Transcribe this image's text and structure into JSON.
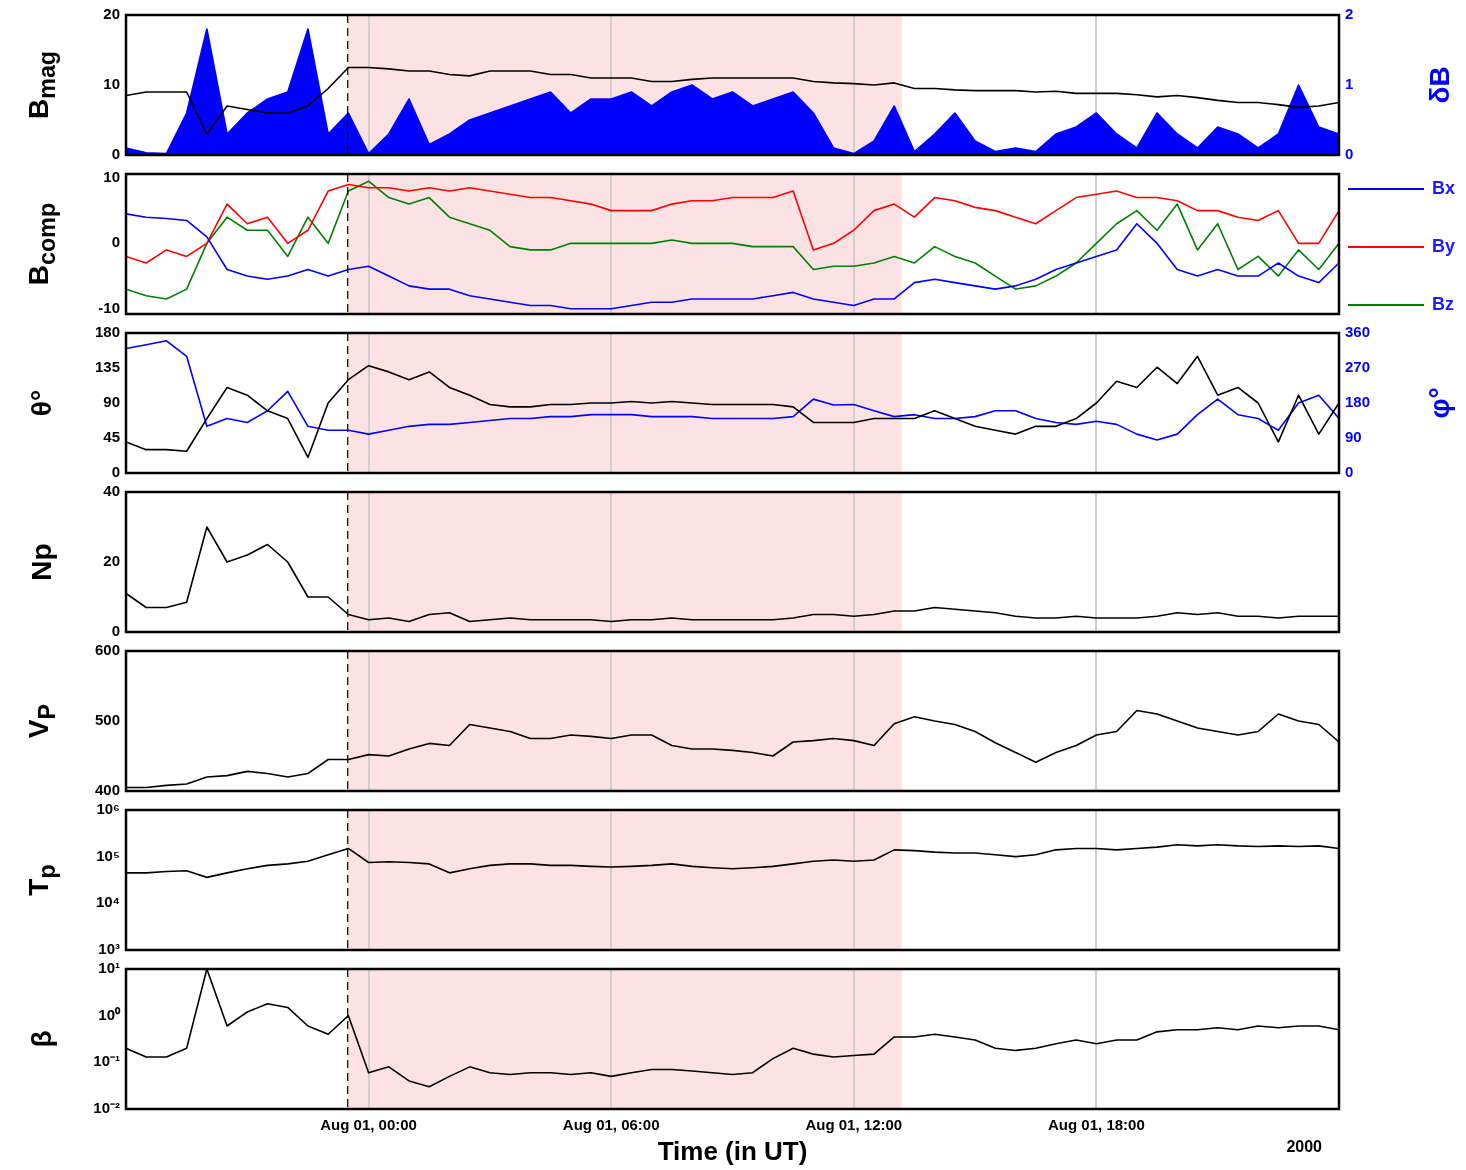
{
  "chart_data": [
    {
      "type": "line",
      "ylabel": "B$_{mag}$",
      "y2label": "δB",
      "x": [
        "2000-07-31T18:00",
        "2000-07-31T18:30",
        "2000-07-31T19:00",
        "2000-07-31T19:30",
        "2000-07-31T20:00",
        "2000-07-31T20:30",
        "2000-07-31T21:00",
        "2000-07-31T21:30",
        "2000-07-31T22:00",
        "2000-07-31T22:30",
        "2000-07-31T23:00",
        "2000-07-31T23:30",
        "2000-08-01T00:00",
        "2000-08-01T00:30",
        "2000-08-01T01:00",
        "2000-08-01T01:30",
        "2000-08-01T02:00",
        "2000-08-01T02:30",
        "2000-08-01T03:00",
        "2000-08-01T03:30",
        "2000-08-01T04:00",
        "2000-08-01T04:30",
        "2000-08-01T05:00",
        "2000-08-01T05:30",
        "2000-08-01T06:00",
        "2000-08-01T06:30",
        "2000-08-01T07:00",
        "2000-08-01T07:30",
        "2000-08-01T08:00",
        "2000-08-01T08:30",
        "2000-08-01T09:00",
        "2000-08-01T09:30",
        "2000-08-01T10:00",
        "2000-08-01T10:30",
        "2000-08-01T11:00",
        "2000-08-01T11:30",
        "2000-08-01T12:00",
        "2000-08-01T12:30",
        "2000-08-01T13:00",
        "2000-08-01T13:30",
        "2000-08-01T14:00",
        "2000-08-01T14:30",
        "2000-08-01T15:00",
        "2000-08-01T15:30",
        "2000-08-01T16:00",
        "2000-08-01T16:30",
        "2000-08-01T17:00",
        "2000-08-01T17:30",
        "2000-08-01T18:00",
        "2000-08-01T18:30",
        "2000-08-01T19:00",
        "2000-08-01T19:30",
        "2000-08-01T20:00",
        "2000-08-01T20:30",
        "2000-08-01T21:00",
        "2000-08-01T21:30",
        "2000-08-01T22:00",
        "2000-08-01T22:30",
        "2000-08-01T23:00",
        "2000-08-01T23:30",
        "2000-08-02T00:00"
      ],
      "series": [
        {
          "color": "#000000",
          "values": [
            8.5,
            9,
            9,
            9,
            3,
            7,
            6.5,
            6,
            6,
            7,
            9.5,
            12.5,
            12.5,
            12.3,
            12,
            12,
            11.5,
            11.3,
            12,
            12,
            12,
            11.5,
            11.5,
            11,
            11,
            11,
            10.5,
            10.5,
            10.8,
            11,
            11,
            11,
            11,
            11,
            10.5,
            10.3,
            10.2,
            10,
            10.3,
            9.5,
            9.5,
            9.3,
            9.2,
            9.2,
            9.2,
            9,
            9.1,
            8.8,
            8.8,
            8.8,
            8.6,
            8.3,
            8.5,
            8.2,
            7.8,
            7.5,
            7.5,
            7.2,
            6.8,
            7,
            7.5
          ]
        },
        {
          "type": "area",
          "axis": "y2",
          "color": "#0000ff",
          "values": [
            0.1,
            0.03,
            0.02,
            0.6,
            1.8,
            0.3,
            0.6,
            0.8,
            0.9,
            1.8,
            0.3,
            0.6,
            0.02,
            0.3,
            0.8,
            0.15,
            0.3,
            0.5,
            0.6,
            0.7,
            0.8,
            0.9,
            0.6,
            0.8,
            0.8,
            0.9,
            0.7,
            0.9,
            1.0,
            0.8,
            0.9,
            0.7,
            0.8,
            0.9,
            0.6,
            0.1,
            0.02,
            0.2,
            0.7,
            0.05,
            0.3,
            0.6,
            0.2,
            0.05,
            0.1,
            0.05,
            0.3,
            0.4,
            0.6,
            0.3,
            0.1,
            0.6,
            0.3,
            0.1,
            0.4,
            0.3,
            0.1,
            0.3,
            1.0,
            0.4,
            0.3
          ]
        }
      ],
      "xlim": [
        "2000-07-31T18:00",
        "2000-08-02T00:00"
      ],
      "xticks": [
        {
          "value": "2000-08-01T00:00",
          "label": null
        },
        {
          "value": "2000-08-01T06:00",
          "label": null
        },
        {
          "value": "2000-08-01T12:00",
          "label": null
        },
        {
          "value": "2000-08-01T18:00",
          "label": null
        }
      ],
      "ylim": [
        0,
        20
      ],
      "yticks": [
        0,
        10,
        20
      ],
      "y2lim": [
        0,
        2
      ],
      "y2ticks": [
        0,
        1,
        2
      ],
      "grid": "x",
      "tick_labels": "y",
      "bands": [
        {
          "axis": "x",
          "from": "2000-07-31T23:29",
          "to": "2000-08-01T13:11",
          "color": "#fde2e4"
        }
      ],
      "ref_lines": [
        {
          "axis": "x",
          "value": "2000-07-31T23:29",
          "color": "#000000",
          "line_style": "dashed"
        }
      ]
    },
    {
      "type": "line",
      "ylabel": "B$_{comp}$",
      "legend": "right",
      "x": [
        "2000-07-31T18:00",
        "2000-07-31T18:30",
        "2000-07-31T19:00",
        "2000-07-31T19:30",
        "2000-07-31T20:00",
        "2000-07-31T20:30",
        "2000-07-31T21:00",
        "2000-07-31T21:30",
        "2000-07-31T22:00",
        "2000-07-31T22:30",
        "2000-07-31T23:00",
        "2000-07-31T23:30",
        "2000-08-01T00:00",
        "2000-08-01T00:30",
        "2000-08-01T01:00",
        "2000-08-01T01:30",
        "2000-08-01T02:00",
        "2000-08-01T02:30",
        "2000-08-01T03:00",
        "2000-08-01T03:30",
        "2000-08-01T04:00",
        "2000-08-01T04:30",
        "2000-08-01T05:00",
        "2000-08-01T05:30",
        "2000-08-01T06:00",
        "2000-08-01T06:30",
        "2000-08-01T07:00",
        "2000-08-01T07:30",
        "2000-08-01T08:00",
        "2000-08-01T08:30",
        "2000-08-01T09:00",
        "2000-08-01T09:30",
        "2000-08-01T10:00",
        "2000-08-01T10:30",
        "2000-08-01T11:00",
        "2000-08-01T11:30",
        "2000-08-01T12:00",
        "2000-08-01T12:30",
        "2000-08-01T13:00",
        "2000-08-01T13:30",
        "2000-08-01T14:00",
        "2000-08-01T14:30",
        "2000-08-01T15:00",
        "2000-08-01T15:30",
        "2000-08-01T16:00",
        "2000-08-01T16:30",
        "2000-08-01T17:00",
        "2000-08-01T17:30",
        "2000-08-01T18:00",
        "2000-08-01T18:30",
        "2000-08-01T19:00",
        "2000-08-01T19:30",
        "2000-08-01T20:00",
        "2000-08-01T20:30",
        "2000-08-01T21:00",
        "2000-08-01T21:30",
        "2000-08-01T22:00",
        "2000-08-01T22:30",
        "2000-08-01T23:00",
        "2000-08-01T23:30",
        "2000-08-02T00:00"
      ],
      "series": [
        {
          "name": "Bx",
          "color": "#0000ff",
          "values": [
            4.5,
            4,
            3.8,
            3.5,
            1,
            -4,
            -5,
            -5.5,
            -5,
            -4,
            -5,
            -4,
            -3.5,
            -5,
            -6.5,
            -7,
            -7,
            -8,
            -8.5,
            -9,
            -9.5,
            -9.5,
            -10,
            -10,
            -10,
            -9.5,
            -9,
            -9,
            -8.5,
            -8.5,
            -8.5,
            -8.5,
            -8,
            -7.5,
            -8.5,
            -9,
            -9.5,
            -8.5,
            -8.5,
            -6,
            -5.5,
            -6,
            -6.5,
            -7,
            -6.5,
            -5.5,
            -4,
            -3,
            -2,
            -1,
            3,
            0,
            -4,
            -5,
            -4,
            -5,
            -5,
            -3,
            -5,
            -6,
            -3
          ]
        },
        {
          "name": "By",
          "color": "#ff0000",
          "values": [
            -2,
            -3,
            -1,
            -2,
            0,
            6,
            3,
            4,
            0,
            2,
            8,
            9,
            8.5,
            8.5,
            8,
            8.5,
            8,
            8.5,
            8,
            7.5,
            7,
            7,
            6.5,
            6,
            5,
            5,
            5,
            6,
            6.5,
            6.5,
            7,
            7,
            7,
            8,
            -1,
            0,
            2,
            5,
            6,
            4,
            7,
            6.5,
            5.5,
            5,
            4,
            3,
            5,
            7,
            7.5,
            8,
            7,
            7,
            6.5,
            5,
            5,
            4,
            3.5,
            5,
            0,
            0,
            5
          ]
        },
        {
          "name": "Bz",
          "color": "#008000",
          "values": [
            -7,
            -8,
            -8.5,
            -7,
            0,
            4,
            2,
            2,
            -2,
            4,
            0,
            8,
            9.5,
            7,
            6,
            7,
            4,
            3,
            2,
            -0.5,
            -1,
            -1,
            0,
            0,
            0,
            0,
            0,
            0.5,
            0,
            0,
            0,
            -0.5,
            -0.5,
            -0.5,
            -4,
            -3.5,
            -3.5,
            -3,
            -2,
            -3,
            -0.5,
            -2,
            -3,
            -5,
            -7,
            -6.5,
            -5,
            -3,
            0,
            3,
            5,
            2,
            6,
            -1,
            3,
            -4,
            -2,
            -5,
            -1,
            -4,
            0
          ]
        }
      ],
      "xlim": [
        "2000-07-31T18:00",
        "2000-08-02T00:00"
      ],
      "xticks": [
        {
          "value": "2000-08-01T00:00",
          "label": null
        },
        {
          "value": "2000-08-01T06:00",
          "label": null
        },
        {
          "value": "2000-08-01T12:00",
          "label": null
        },
        {
          "value": "2000-08-01T18:00",
          "label": null
        }
      ],
      "ylim": [
        -10.8,
        10.6
      ],
      "yticks": [
        -10,
        0,
        10
      ],
      "grid": "x",
      "tick_labels": "y",
      "bands": [
        {
          "axis": "x",
          "from": "2000-07-31T23:29",
          "to": "2000-08-01T13:11",
          "color": "#fde2e4"
        }
      ],
      "ref_lines": [
        {
          "axis": "x",
          "value": "2000-07-31T23:29",
          "color": "#000000",
          "line_style": "dashed"
        }
      ]
    },
    {
      "type": "line",
      "ylabel": "θ°",
      "y2label": "φ°",
      "x": [
        "2000-07-31T18:00",
        "2000-07-31T18:30",
        "2000-07-31T19:00",
        "2000-07-31T19:30",
        "2000-07-31T20:00",
        "2000-07-31T20:30",
        "2000-07-31T21:00",
        "2000-07-31T21:30",
        "2000-07-31T22:00",
        "2000-07-31T22:30",
        "2000-07-31T23:00",
        "2000-07-31T23:30",
        "2000-08-01T00:00",
        "2000-08-01T00:30",
        "2000-08-01T01:00",
        "2000-08-01T01:30",
        "2000-08-01T02:00",
        "2000-08-01T02:30",
        "2000-08-01T03:00",
        "2000-08-01T03:30",
        "2000-08-01T04:00",
        "2000-08-01T04:30",
        "2000-08-01T05:00",
        "2000-08-01T05:30",
        "2000-08-01T06:00",
        "2000-08-01T06:30",
        "2000-08-01T07:00",
        "2000-08-01T07:30",
        "2000-08-01T08:00",
        "2000-08-01T08:30",
        "2000-08-01T09:00",
        "2000-08-01T09:30",
        "2000-08-01T10:00",
        "2000-08-01T10:30",
        "2000-08-01T11:00",
        "2000-08-01T11:30",
        "2000-08-01T12:00",
        "2000-08-01T12:30",
        "2000-08-01T13:00",
        "2000-08-01T13:30",
        "2000-08-01T14:00",
        "2000-08-01T14:30",
        "2000-08-01T15:00",
        "2000-08-01T15:30",
        "2000-08-01T16:00",
        "2000-08-01T16:30",
        "2000-08-01T17:00",
        "2000-08-01T17:30",
        "2000-08-01T18:00",
        "2000-08-01T18:30",
        "2000-08-01T19:00",
        "2000-08-01T19:30",
        "2000-08-01T20:00",
        "2000-08-01T20:30",
        "2000-08-01T21:00",
        "2000-08-01T21:30",
        "2000-08-01T22:00",
        "2000-08-01T22:30",
        "2000-08-01T23:00",
        "2000-08-01T23:30",
        "2000-08-02T00:00"
      ],
      "series": [
        {
          "color": "#000000",
          "values": [
            40,
            30,
            30,
            28,
            70,
            110,
            100,
            80,
            70,
            20,
            90,
            120,
            138,
            130,
            120,
            130,
            110,
            100,
            88,
            85,
            85,
            88,
            88,
            90,
            90,
            92,
            90,
            92,
            90,
            88,
            88,
            88,
            88,
            85,
            65,
            65,
            65,
            70,
            70,
            70,
            80,
            70,
            60,
            55,
            50,
            60,
            60,
            70,
            90,
            118,
            110,
            136,
            115,
            150,
            100,
            110,
            90,
            40,
            100,
            50,
            90
          ]
        },
        {
          "axis": "y2",
          "color": "#0000ff",
          "values": [
            320,
            330,
            340,
            300,
            120,
            140,
            130,
            160,
            210,
            120,
            110,
            110,
            100,
            110,
            120,
            125,
            125,
            130,
            135,
            140,
            140,
            145,
            145,
            150,
            150,
            150,
            145,
            145,
            145,
            140,
            140,
            140,
            140,
            145,
            190,
            175,
            176,
            160,
            145,
            150,
            140,
            140,
            145,
            160,
            160,
            140,
            130,
            125,
            133,
            125,
            100,
            85,
            100,
            150,
            190,
            150,
            140,
            110,
            180,
            200,
            140
          ]
        }
      ],
      "xlim": [
        "2000-07-31T18:00",
        "2000-08-02T00:00"
      ],
      "xticks": [
        {
          "value": "2000-08-01T00:00",
          "label": null
        },
        {
          "value": "2000-08-01T06:00",
          "label": null
        },
        {
          "value": "2000-08-01T12:00",
          "label": null
        },
        {
          "value": "2000-08-01T18:00",
          "label": null
        }
      ],
      "ylim": [
        0,
        180
      ],
      "yticks": [
        0,
        45,
        90,
        135,
        180
      ],
      "y2lim": [
        0,
        360
      ],
      "y2ticks": [
        0,
        90,
        180,
        270,
        360
      ],
      "grid": "x",
      "tick_labels": "y",
      "bands": [
        {
          "axis": "x",
          "from": "2000-07-31T23:29",
          "to": "2000-08-01T13:11",
          "color": "#fde2e4"
        }
      ],
      "ref_lines": [
        {
          "axis": "x",
          "value": "2000-07-31T23:29",
          "color": "#000000",
          "line_style": "dashed"
        }
      ]
    },
    {
      "type": "line",
      "ylabel": "Np",
      "x": [
        "2000-07-31T18:00",
        "2000-07-31T18:30",
        "2000-07-31T19:00",
        "2000-07-31T19:30",
        "2000-07-31T20:00",
        "2000-07-31T20:30",
        "2000-07-31T21:00",
        "2000-07-31T21:30",
        "2000-07-31T22:00",
        "2000-07-31T22:30",
        "2000-07-31T23:00",
        "2000-07-31T23:30",
        "2000-08-01T00:00",
        "2000-08-01T00:30",
        "2000-08-01T01:00",
        "2000-08-01T01:30",
        "2000-08-01T02:00",
        "2000-08-01T02:30",
        "2000-08-01T03:00",
        "2000-08-01T03:30",
        "2000-08-01T04:00",
        "2000-08-01T04:30",
        "2000-08-01T05:00",
        "2000-08-01T05:30",
        "2000-08-01T06:00",
        "2000-08-01T06:30",
        "2000-08-01T07:00",
        "2000-08-01T07:30",
        "2000-08-01T08:00",
        "2000-08-01T08:30",
        "2000-08-01T09:00",
        "2000-08-01T09:30",
        "2000-08-01T10:00",
        "2000-08-01T10:30",
        "2000-08-01T11:00",
        "2000-08-01T11:30",
        "2000-08-01T12:00",
        "2000-08-01T12:30",
        "2000-08-01T13:00",
        "2000-08-01T13:30",
        "2000-08-01T14:00",
        "2000-08-01T14:30",
        "2000-08-01T15:00",
        "2000-08-01T15:30",
        "2000-08-01T16:00",
        "2000-08-01T16:30",
        "2000-08-01T17:00",
        "2000-08-01T17:30",
        "2000-08-01T18:00",
        "2000-08-01T18:30",
        "2000-08-01T19:00",
        "2000-08-01T19:30",
        "2000-08-01T20:00",
        "2000-08-01T20:30",
        "2000-08-01T21:00",
        "2000-08-01T21:30",
        "2000-08-01T22:00",
        "2000-08-01T22:30",
        "2000-08-01T23:00",
        "2000-08-01T23:30",
        "2000-08-02T00:00"
      ],
      "series": [
        {
          "color": "#000000",
          "values": [
            11,
            7,
            7,
            8.5,
            30,
            20,
            22,
            25,
            20,
            10,
            10,
            5,
            3.5,
            4,
            3,
            5,
            5.5,
            3,
            3.5,
            4,
            3.5,
            3.5,
            3.5,
            3.5,
            3,
            3.5,
            3.5,
            4,
            3.5,
            3.5,
            3.5,
            3.5,
            3.5,
            4,
            5,
            5,
            4.5,
            5,
            6,
            6,
            7,
            6.5,
            6,
            5.5,
            4.5,
            4,
            4,
            4.5,
            4,
            4,
            4,
            4.5,
            5.5,
            5,
            5.5,
            4.5,
            4.5,
            4,
            4.5,
            4.5,
            4.5
          ]
        }
      ],
      "xlim": [
        "2000-07-31T18:00",
        "2000-08-02T00:00"
      ],
      "xticks": [
        {
          "value": "2000-08-01T00:00",
          "label": null
        },
        {
          "value": "2000-08-01T06:00",
          "label": null
        },
        {
          "value": "2000-08-01T12:00",
          "label": null
        },
        {
          "value": "2000-08-01T18:00",
          "label": null
        }
      ],
      "ylim": [
        0,
        40
      ],
      "yticks": [
        0,
        20,
        40
      ],
      "grid": "x",
      "tick_labels": "y",
      "bands": [
        {
          "axis": "x",
          "from": "2000-07-31T23:29",
          "to": "2000-08-01T13:11",
          "color": "#fde2e4"
        }
      ],
      "ref_lines": [
        {
          "axis": "x",
          "value": "2000-07-31T23:29",
          "color": "#000000",
          "line_style": "dashed"
        }
      ]
    },
    {
      "type": "line",
      "ylabel": "V$_{P}$",
      "x": [
        "2000-07-31T18:00",
        "2000-07-31T18:30",
        "2000-07-31T19:00",
        "2000-07-31T19:30",
        "2000-07-31T20:00",
        "2000-07-31T20:30",
        "2000-07-31T21:00",
        "2000-07-31T21:30",
        "2000-07-31T22:00",
        "2000-07-31T22:30",
        "2000-07-31T23:00",
        "2000-07-31T23:30",
        "2000-08-01T00:00",
        "2000-08-01T00:30",
        "2000-08-01T01:00",
        "2000-08-01T01:30",
        "2000-08-01T02:00",
        "2000-08-01T02:30",
        "2000-08-01T03:00",
        "2000-08-01T03:30",
        "2000-08-01T04:00",
        "2000-08-01T04:30",
        "2000-08-01T05:00",
        "2000-08-01T05:30",
        "2000-08-01T06:00",
        "2000-08-01T06:30",
        "2000-08-01T07:00",
        "2000-08-01T07:30",
        "2000-08-01T08:00",
        "2000-08-01T08:30",
        "2000-08-01T09:00",
        "2000-08-01T09:30",
        "2000-08-01T10:00",
        "2000-08-01T10:30",
        "2000-08-01T11:00",
        "2000-08-01T11:30",
        "2000-08-01T12:00",
        "2000-08-01T12:30",
        "2000-08-01T13:00",
        "2000-08-01T13:30",
        "2000-08-01T14:00",
        "2000-08-01T14:30",
        "2000-08-01T15:00",
        "2000-08-01T15:30",
        "2000-08-01T16:00",
        "2000-08-01T16:30",
        "2000-08-01T17:00",
        "2000-08-01T17:30",
        "2000-08-01T18:00",
        "2000-08-01T18:30",
        "2000-08-01T19:00",
        "2000-08-01T19:30",
        "2000-08-01T20:00",
        "2000-08-01T20:30",
        "2000-08-01T21:00",
        "2000-08-01T21:30",
        "2000-08-01T22:00",
        "2000-08-01T22:30",
        "2000-08-01T23:00",
        "2000-08-01T23:30",
        "2000-08-02T00:00"
      ],
      "series": [
        {
          "color": "#000000",
          "values": [
            405,
            405,
            408,
            410,
            420,
            422,
            428,
            425,
            420,
            425,
            445,
            445,
            452,
            450,
            460,
            468,
            465,
            495,
            490,
            485,
            475,
            475,
            480,
            478,
            475,
            480,
            480,
            465,
            460,
            460,
            458,
            455,
            450,
            470,
            472,
            475,
            472,
            465,
            496,
            506,
            500,
            495,
            485,
            469,
            455,
            441,
            455,
            465,
            480,
            485,
            515,
            510,
            500,
            490,
            485,
            480,
            485,
            510,
            500,
            495,
            470
          ]
        }
      ],
      "xlim": [
        "2000-07-31T18:00",
        "2000-08-02T00:00"
      ],
      "xticks": [
        {
          "value": "2000-08-01T00:00",
          "label": null
        },
        {
          "value": "2000-08-01T06:00",
          "label": null
        },
        {
          "value": "2000-08-01T12:00",
          "label": null
        },
        {
          "value": "2000-08-01T18:00",
          "label": null
        }
      ],
      "ylim": [
        400,
        600
      ],
      "yticks": [
        400,
        500,
        600
      ],
      "grid": "x",
      "tick_labels": "y",
      "bands": [
        {
          "axis": "x",
          "from": "2000-07-31T23:29",
          "to": "2000-08-01T13:11",
          "color": "#fde2e4"
        }
      ],
      "ref_lines": [
        {
          "axis": "x",
          "value": "2000-07-31T23:29",
          "color": "#000000",
          "line_style": "dashed"
        }
      ]
    },
    {
      "type": "line",
      "ylabel": "T$_{p}$",
      "log": "y",
      "x": [
        "2000-07-31T18:00",
        "2000-07-31T18:30",
        "2000-07-31T19:00",
        "2000-07-31T19:30",
        "2000-07-31T20:00",
        "2000-07-31T20:30",
        "2000-07-31T21:00",
        "2000-07-31T21:30",
        "2000-07-31T22:00",
        "2000-07-31T22:30",
        "2000-07-31T23:00",
        "2000-07-31T23:30",
        "2000-08-01T00:00",
        "2000-08-01T00:30",
        "2000-08-01T01:00",
        "2000-08-01T01:30",
        "2000-08-01T02:00",
        "2000-08-01T02:30",
        "2000-08-01T03:00",
        "2000-08-01T03:30",
        "2000-08-01T04:00",
        "2000-08-01T04:30",
        "2000-08-01T05:00",
        "2000-08-01T05:30",
        "2000-08-01T06:00",
        "2000-08-01T06:30",
        "2000-08-01T07:00",
        "2000-08-01T07:30",
        "2000-08-01T08:00",
        "2000-08-01T08:30",
        "2000-08-01T09:00",
        "2000-08-01T09:30",
        "2000-08-01T10:00",
        "2000-08-01T10:30",
        "2000-08-01T11:00",
        "2000-08-01T11:30",
        "2000-08-01T12:00",
        "2000-08-01T12:30",
        "2000-08-01T13:00",
        "2000-08-01T13:30",
        "2000-08-01T14:00",
        "2000-08-01T14:30",
        "2000-08-01T15:00",
        "2000-08-01T15:30",
        "2000-08-01T16:00",
        "2000-08-01T16:30",
        "2000-08-01T17:00",
        "2000-08-01T17:30",
        "2000-08-01T18:00",
        "2000-08-01T18:30",
        "2000-08-01T19:00",
        "2000-08-01T19:30",
        "2000-08-01T20:00",
        "2000-08-01T20:30",
        "2000-08-01T21:00",
        "2000-08-01T21:30",
        "2000-08-01T22:00",
        "2000-08-01T22:30",
        "2000-08-01T23:00",
        "2000-08-01T23:30",
        "2000-08-02T00:00"
      ],
      "series": [
        {
          "color": "#000000",
          "values": [
            45000,
            45000,
            48000,
            50000,
            36000,
            45000,
            55000,
            65000,
            70000,
            80000,
            110000,
            150000,
            75000,
            78000,
            75000,
            70000,
            45000,
            55000,
            65000,
            70000,
            70000,
            65000,
            65000,
            62000,
            60000,
            62000,
            65000,
            70000,
            62000,
            58000,
            55000,
            58000,
            62000,
            70000,
            80000,
            85000,
            80000,
            85000,
            140000,
            135000,
            125000,
            120000,
            120000,
            110000,
            100000,
            110000,
            140000,
            150000,
            150000,
            140000,
            150000,
            160000,
            180000,
            170000,
            180000,
            170000,
            165000,
            170000,
            165000,
            170000,
            150000
          ]
        }
      ],
      "xlim": [
        "2000-07-31T18:00",
        "2000-08-02T00:00"
      ],
      "xticks": [
        {
          "value": "2000-08-01T00:00",
          "label": null
        },
        {
          "value": "2000-08-01T06:00",
          "label": null
        },
        {
          "value": "2000-08-01T12:00",
          "label": null
        },
        {
          "value": "2000-08-01T18:00",
          "label": null
        }
      ],
      "ylim": [
        1000,
        1000000
      ],
      "yticks": [
        {
          "value": 1000,
          "label": "10³"
        },
        {
          "value": 10000,
          "label": "10⁴"
        },
        {
          "value": 100000,
          "label": "10⁵"
        },
        {
          "value": 1000000,
          "label": "10⁶"
        }
      ],
      "grid": "x",
      "tick_labels": "y",
      "bands": [
        {
          "axis": "x",
          "from": "2000-07-31T23:29",
          "to": "2000-08-01T13:11",
          "color": "#fde2e4"
        }
      ],
      "ref_lines": [
        {
          "axis": "x",
          "value": "2000-07-31T23:29",
          "color": "#000000",
          "line_style": "dashed"
        }
      ]
    },
    {
      "type": "line",
      "ylabel": "β",
      "xlabel": "Time (in UT)",
      "log": "y",
      "annotations": [
        "2000"
      ],
      "x": [
        "2000-07-31T18:00",
        "2000-07-31T18:30",
        "2000-07-31T19:00",
        "2000-07-31T19:30",
        "2000-07-31T20:00",
        "2000-07-31T20:30",
        "2000-07-31T21:00",
        "2000-07-31T21:30",
        "2000-07-31T22:00",
        "2000-07-31T22:30",
        "2000-07-31T23:00",
        "2000-07-31T23:30",
        "2000-08-01T00:00",
        "2000-08-01T00:30",
        "2000-08-01T01:00",
        "2000-08-01T01:30",
        "2000-08-01T02:00",
        "2000-08-01T02:30",
        "2000-08-01T03:00",
        "2000-08-01T03:30",
        "2000-08-01T04:00",
        "2000-08-01T04:30",
        "2000-08-01T05:00",
        "2000-08-01T05:30",
        "2000-08-01T06:00",
        "2000-08-01T06:30",
        "2000-08-01T07:00",
        "2000-08-01T07:30",
        "2000-08-01T08:00",
        "2000-08-01T08:30",
        "2000-08-01T09:00",
        "2000-08-01T09:30",
        "2000-08-01T10:00",
        "2000-08-01T10:30",
        "2000-08-01T11:00",
        "2000-08-01T11:30",
        "2000-08-01T12:00",
        "2000-08-01T12:30",
        "2000-08-01T13:00",
        "2000-08-01T13:30",
        "2000-08-01T14:00",
        "2000-08-01T14:30",
        "2000-08-01T15:00",
        "2000-08-01T15:30",
        "2000-08-01T16:00",
        "2000-08-01T16:30",
        "2000-08-01T17:00",
        "2000-08-01T17:30",
        "2000-08-01T18:00",
        "2000-08-01T18:30",
        "2000-08-01T19:00",
        "2000-08-01T19:30",
        "2000-08-01T20:00",
        "2000-08-01T20:30",
        "2000-08-01T21:00",
        "2000-08-01T21:30",
        "2000-08-01T22:00",
        "2000-08-01T22:30",
        "2000-08-01T23:00",
        "2000-08-01T23:30",
        "2000-08-02T00:00"
      ],
      "series": [
        {
          "color": "#000000",
          "values": [
            0.2,
            0.13,
            0.13,
            0.2,
            10,
            0.6,
            1.2,
            1.8,
            1.5,
            0.6,
            0.4,
            1,
            0.06,
            0.08,
            0.04,
            0.03,
            0.05,
            0.08,
            0.06,
            0.055,
            0.06,
            0.06,
            0.055,
            0.06,
            0.05,
            0.06,
            0.07,
            0.07,
            0.065,
            0.06,
            0.055,
            0.06,
            0.12,
            0.2,
            0.15,
            0.13,
            0.14,
            0.15,
            0.35,
            0.35,
            0.4,
            0.35,
            0.3,
            0.2,
            0.18,
            0.2,
            0.25,
            0.3,
            0.25,
            0.3,
            0.3,
            0.45,
            0.5,
            0.5,
            0.55,
            0.5,
            0.6,
            0.55,
            0.6,
            0.6,
            0.5
          ]
        }
      ],
      "xlim": [
        "2000-07-31T18:00",
        "2000-08-02T00:00"
      ],
      "xticks": [
        {
          "value": "2000-08-01T00:00",
          "label": "Aug 01, 00:00"
        },
        {
          "value": "2000-08-01T06:00",
          "label": "Aug 01, 06:00"
        },
        {
          "value": "2000-08-01T12:00",
          "label": "Aug 01, 12:00"
        },
        {
          "value": "2000-08-01T18:00",
          "label": "Aug 01, 18:00"
        }
      ],
      "ylim": [
        0.01,
        10
      ],
      "yticks": [
        {
          "value": 0.01,
          "label": "10⁻²"
        },
        {
          "value": 0.1,
          "label": "10⁻¹"
        },
        {
          "value": 1,
          "label": "10⁰"
        },
        {
          "value": 10,
          "label": "10¹"
        }
      ],
      "grid": "x",
      "bands": [
        {
          "axis": "x",
          "from": "2000-07-31T23:29",
          "to": "2000-08-01T13:11",
          "color": "#fde2e4"
        }
      ],
      "ref_lines": [
        {
          "axis": "x",
          "value": "2000-07-31T23:29",
          "color": "#000000",
          "line_style": "dashed"
        }
      ]
    }
  ]
}
